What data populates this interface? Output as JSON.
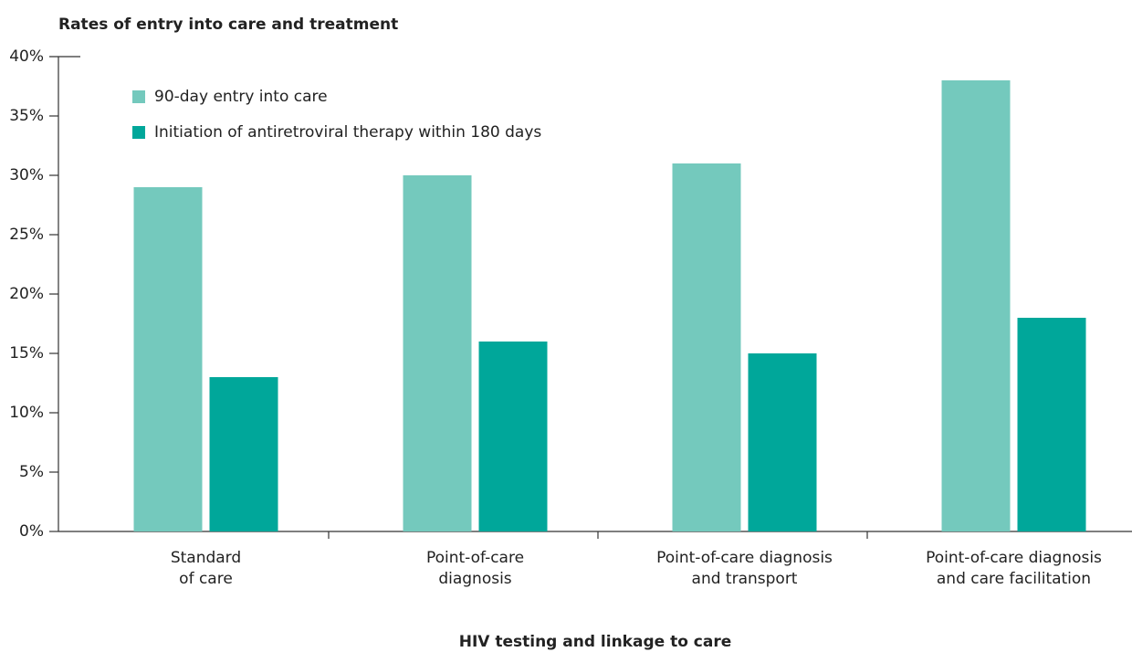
{
  "chart_data": {
    "type": "bar",
    "title": "Rates of entry into care and treatment",
    "x_label": "HIV testing and linkage to care",
    "categories": [
      [
        "Standard",
        "of care"
      ],
      [
        "Point-of-care",
        "diagnosis"
      ],
      [
        "Point-of-care diagnosis",
        "and transport"
      ],
      [
        "Point-of-care diagnosis",
        "and care facilitation"
      ]
    ],
    "series": [
      {
        "name": "90-day entry into care",
        "color": "#74c9bd",
        "values": [
          29,
          30,
          31,
          38
        ]
      },
      {
        "name": "Initiation of antiretroviral therapy within 180 days",
        "color": "#00a79a",
        "values": [
          13,
          16,
          15,
          18
        ]
      }
    ],
    "ylim": [
      0,
      40
    ],
    "yticks": [
      {
        "value": 0,
        "label": "0%"
      },
      {
        "value": 5,
        "label": "5%"
      },
      {
        "value": 10,
        "label": "10%"
      },
      {
        "value": 15,
        "label": "15%"
      },
      {
        "value": 20,
        "label": "20%"
      },
      {
        "value": 25,
        "label": "25%"
      },
      {
        "value": 30,
        "label": "30%"
      },
      {
        "value": 35,
        "label": "35%"
      },
      {
        "value": 40,
        "label": "40%"
      }
    ],
    "grid": false,
    "legend": "upper left"
  }
}
